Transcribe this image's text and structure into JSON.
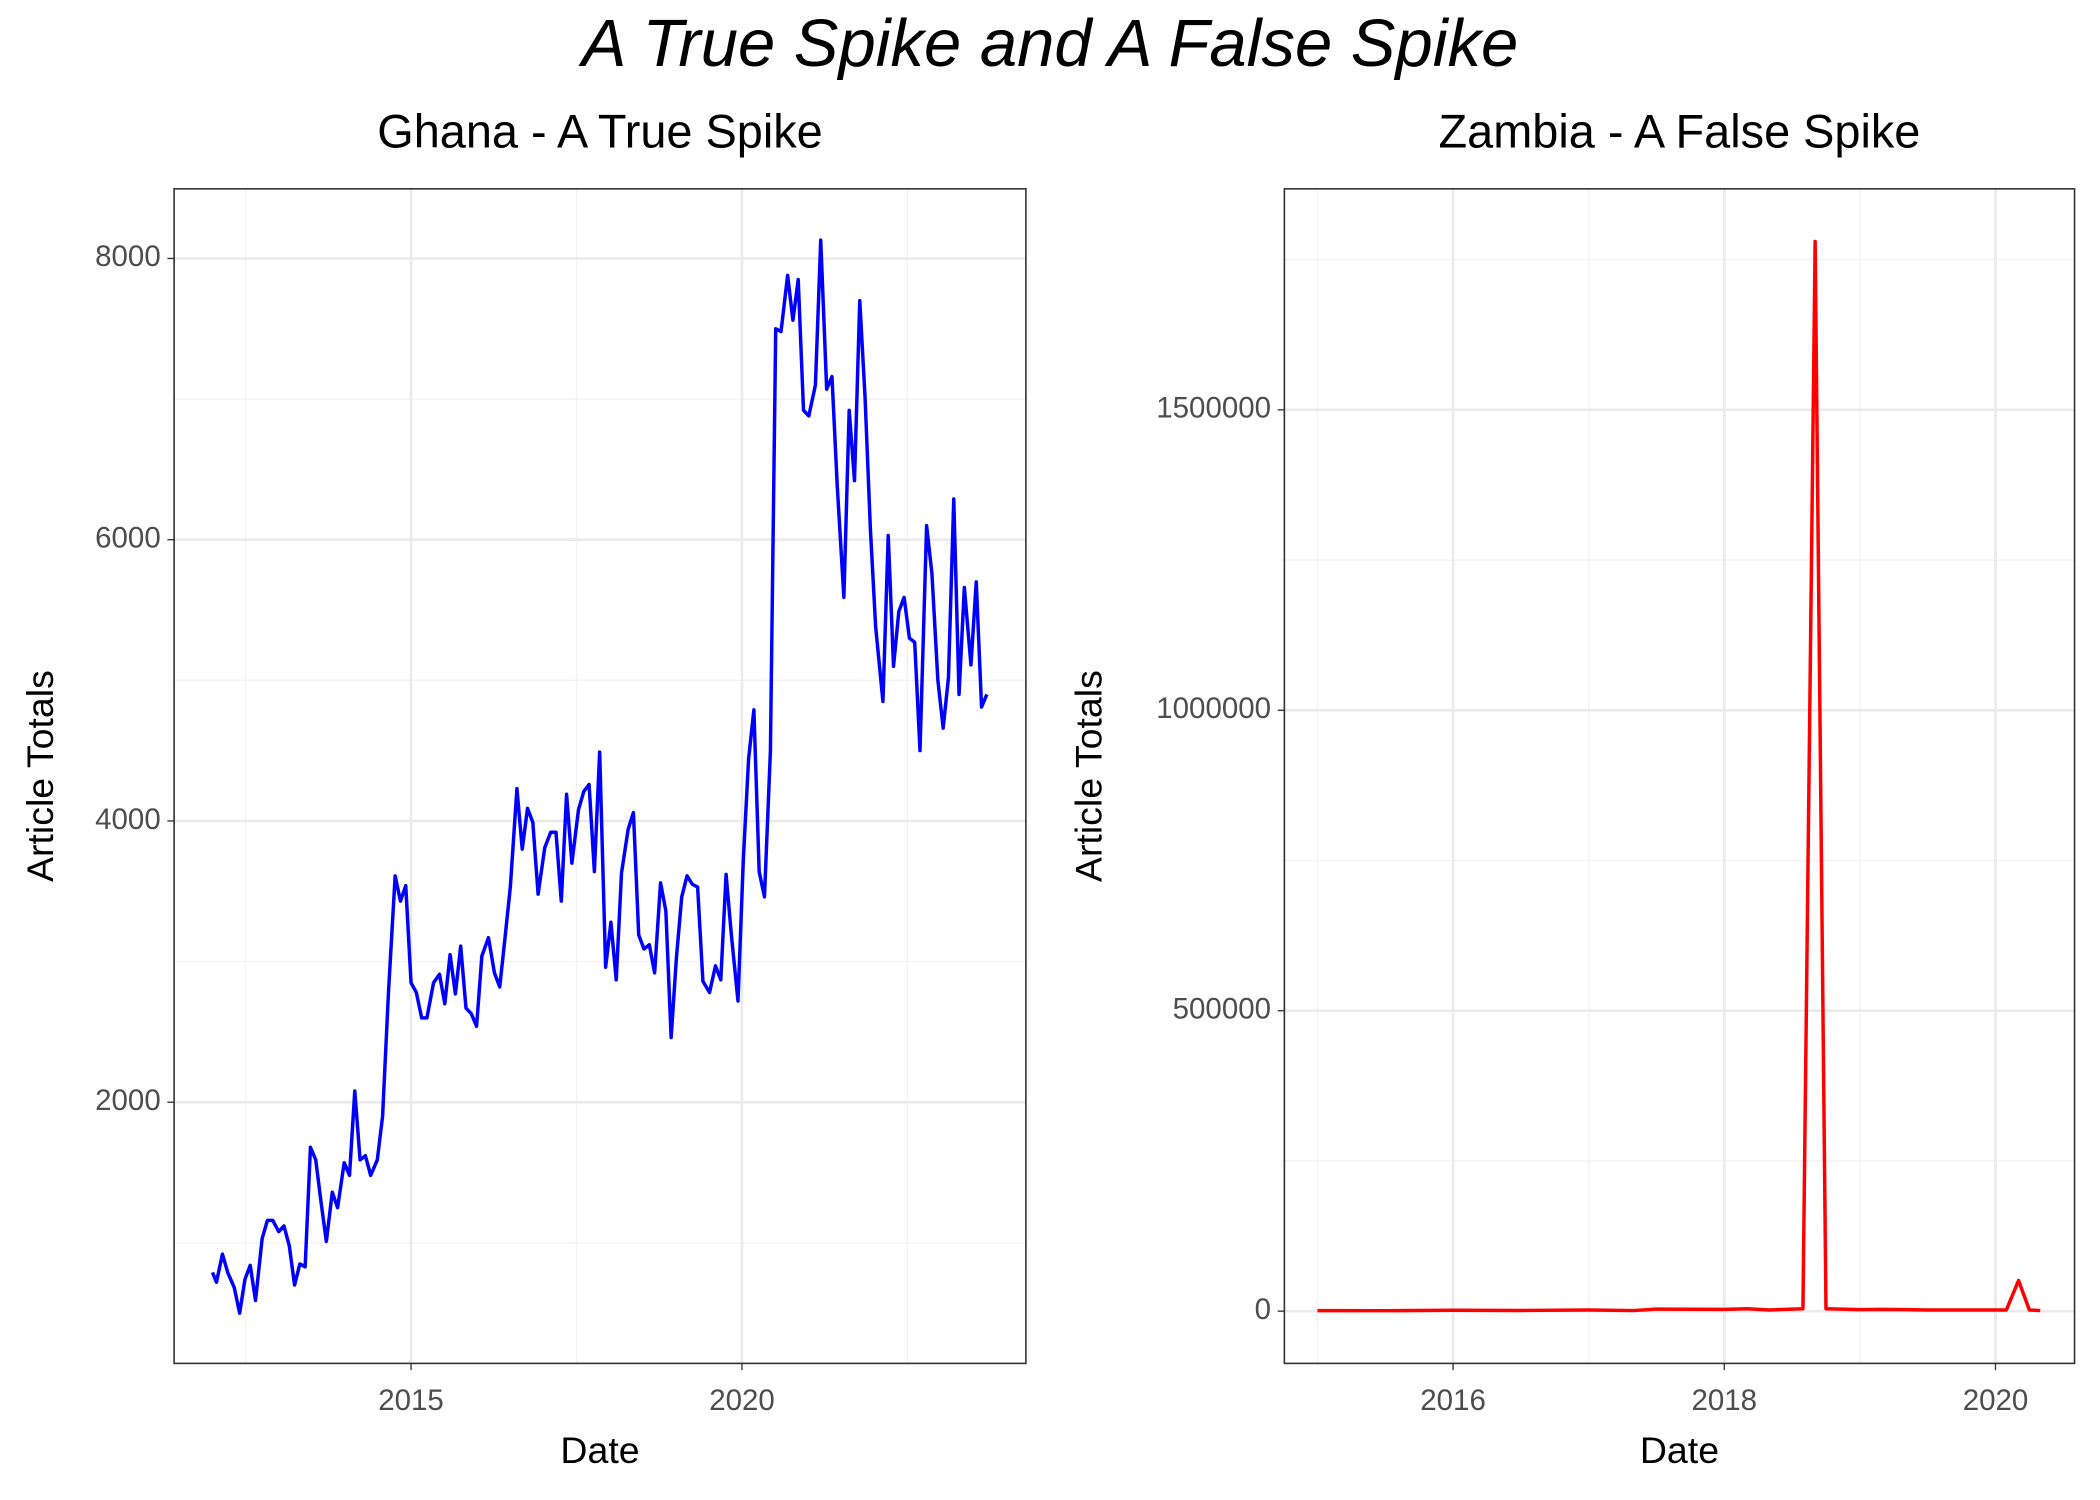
{
  "title": "A True Spike and A False Spike",
  "chart_data": [
    {
      "type": "line",
      "title": "Ghana - A True Spike",
      "x_label": "Date",
      "y_label": "Article Totals",
      "color": "#0000ff",
      "grid": true,
      "xlim": [
        2011.42,
        2024.29
      ],
      "ylim": [
        143,
        8495
      ],
      "xticks": [
        2015,
        2020
      ],
      "yticks": [
        2000,
        4000,
        6000,
        8000
      ],
      "x": [
        2012.0,
        2012.06,
        2012.15,
        2012.23,
        2012.33,
        2012.41,
        2012.49,
        2012.57,
        2012.65,
        2012.75,
        2012.83,
        2012.91,
        2013.0,
        2013.08,
        2013.16,
        2013.24,
        2013.32,
        2013.4,
        2013.48,
        2013.56,
        2013.64,
        2013.72,
        2013.81,
        2013.89,
        2013.99,
        2014.07,
        2014.15,
        2014.23,
        2014.31,
        2014.39,
        2014.49,
        2014.57,
        2014.66,
        2014.76,
        2014.84,
        2014.92,
        2015.0,
        2015.08,
        2015.16,
        2015.24,
        2015.34,
        2015.43,
        2015.51,
        2015.59,
        2015.67,
        2015.75,
        2015.83,
        2015.91,
        2015.99,
        2016.07,
        2016.17,
        2016.26,
        2016.34,
        2016.42,
        2016.5,
        2016.6,
        2016.68,
        2016.76,
        2016.84,
        2016.92,
        2017.02,
        2017.11,
        2017.19,
        2017.27,
        2017.35,
        2017.43,
        2017.53,
        2017.61,
        2017.69,
        2017.77,
        2017.85,
        2017.94,
        2018.02,
        2018.1,
        2018.18,
        2018.28,
        2018.36,
        2018.44,
        2018.52,
        2018.6,
        2018.68,
        2018.77,
        2018.85,
        2018.93,
        2019.01,
        2019.09,
        2019.17,
        2019.25,
        2019.33,
        2019.41,
        2019.51,
        2019.6,
        2019.68,
        2019.76,
        2019.84,
        2019.94,
        2020.02,
        2020.1,
        2020.18,
        2020.26,
        2020.34,
        2020.43,
        2020.51,
        2020.59,
        2020.69,
        2020.77,
        2020.85,
        2020.93,
        2021.01,
        2021.11,
        2021.19,
        2021.28,
        2021.36,
        2021.44,
        2021.54,
        2021.62,
        2021.7,
        2021.78,
        2021.86,
        2021.94,
        2022.02,
        2022.13,
        2022.21,
        2022.29,
        2022.37,
        2022.45,
        2022.53,
        2022.61,
        2022.69,
        2022.79,
        2022.87,
        2022.96,
        2023.04,
        2023.12,
        2023.2,
        2023.28,
        2023.36,
        2023.46,
        2023.54,
        2023.62,
        2023.7
      ],
      "values": [
        790,
        720,
        920,
        790,
        680,
        500,
        740,
        840,
        590,
        1030,
        1160,
        1160,
        1080,
        1120,
        980,
        700,
        850,
        830,
        1680,
        1590,
        1290,
        1010,
        1360,
        1250,
        1570,
        1480,
        2080,
        1590,
        1620,
        1480,
        1590,
        1900,
        2790,
        3610,
        3430,
        3540,
        2850,
        2780,
        2600,
        2600,
        2850,
        2910,
        2700,
        3050,
        2770,
        3110,
        2670,
        2630,
        2540,
        3040,
        3170,
        2920,
        2820,
        3170,
        3530,
        4230,
        3800,
        4090,
        3990,
        3480,
        3810,
        3920,
        3920,
        3430,
        4190,
        3700,
        4080,
        4210,
        4260,
        3640,
        4490,
        2960,
        3280,
        2870,
        3630,
        3940,
        4060,
        3190,
        3090,
        3120,
        2920,
        3560,
        3360,
        2460,
        3030,
        3460,
        3610,
        3550,
        3530,
        2860,
        2780,
        2970,
        2870,
        3620,
        3190,
        2720,
        3720,
        4440,
        4790,
        3640,
        3460,
        4500,
        7500,
        7480,
        7880,
        7560,
        7850,
        6920,
        6880,
        7100,
        8130,
        7070,
        7160,
        6380,
        5590,
        6920,
        6420,
        7700,
        7010,
        6080,
        5380,
        4850,
        6030,
        5100,
        5490,
        5590,
        5300,
        5270,
        4500,
        6100,
        5760,
        5000,
        4660,
        5020,
        6290,
        4900,
        5660,
        5110,
        5700,
        4810,
        4900
      ]
    },
    {
      "type": "line",
      "title": "Zambia - A False Spike",
      "x_label": "Date",
      "y_label": "Article Totals",
      "color": "#ff0000",
      "grid": true,
      "xlim": [
        2014.756,
        2020.583
      ],
      "ylim": [
        -86900,
        1867700
      ],
      "xticks": [
        2016,
        2018,
        2020
      ],
      "yticks": [
        0,
        500000,
        1000000,
        1500000
      ],
      "x": [
        2015.0,
        2015.5,
        2016.0,
        2016.5,
        2017.0,
        2017.33,
        2017.5,
        2018.0,
        2018.17,
        2018.33,
        2018.58,
        2018.67,
        2018.75,
        2019.0,
        2019.17,
        2019.5,
        2020.0,
        2020.08,
        2020.17,
        2020.25,
        2020.33
      ],
      "values": [
        1000,
        800,
        1500,
        1200,
        2000,
        1000,
        3500,
        3000,
        4000,
        2000,
        4000,
        1780000,
        4000,
        2500,
        3000,
        2000,
        2000,
        2000,
        51000,
        2000,
        1000
      ]
    }
  ]
}
